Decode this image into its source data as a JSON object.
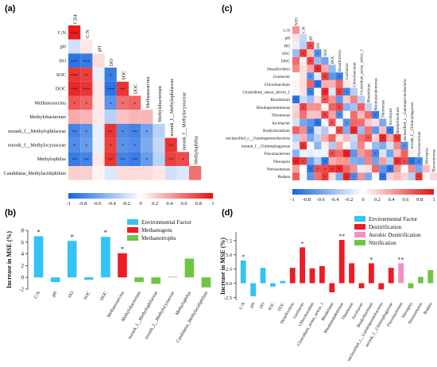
{
  "panel_labels": [
    "(a)",
    "(b)",
    "(c)",
    "(d)"
  ],
  "colorbar_ticks": [
    "-1",
    "-0.8",
    "-0.6",
    "-0.4",
    "-0.2",
    "0",
    "0.2",
    "0.4",
    "0.6",
    "0.8",
    "1"
  ],
  "colors": {
    "environmental": "#33c3f4",
    "methanogens": "#ee1b24",
    "methanotrophs": "#6ec543",
    "denitrification": "#ee1b24",
    "aerobic_denitrification": "#f48fc4",
    "nitrification": "#6ec543",
    "neg": "#1565e0",
    "pos": "#e81010"
  },
  "chart_data": [
    {
      "id": "a",
      "type": "heatmap",
      "title": "",
      "variables": [
        "CH4",
        "C:N",
        "pH",
        "DO",
        "SOC",
        "DOC",
        "Methanosarcina",
        "Methylobacterium",
        "norank_f__Methylophilaceae",
        "norank_f__Methylocystaceae",
        "Methylophilus",
        "Candidatus_Methylacidiphilum"
      ],
      "row_labels": [
        "C:N",
        "pH",
        "DO",
        "SOC",
        "DOC",
        "Methanosarcina",
        "Methylobacterium",
        "norank_f__Methylophilaceae",
        "norank_f__Methylocystaceae",
        "Methylophilus",
        "Candidatus_Methylacidiphilum"
      ],
      "column_labels": [
        "CH4",
        "C:N",
        "pH",
        "DO",
        "SOC",
        "DOC",
        "Methanosarcina",
        "Methylobacterium",
        "norank_f__Methylophilaceae",
        "norank_f__Methylocystaceae",
        "Methylophilus"
      ],
      "values": [
        [
          0.95
        ],
        [
          -0.2,
          0.1
        ],
        [
          -0.9,
          -0.85,
          0.15
        ],
        [
          0.85,
          0.8,
          -0.1,
          -0.85
        ],
        [
          0.9,
          0.85,
          0.1,
          -0.9,
          0.85
        ],
        [
          0.7,
          0.65,
          0.1,
          -0.7,
          0.6,
          0.65
        ],
        [
          0.35,
          0.3,
          0.1,
          -0.3,
          0.25,
          0.3,
          0.3
        ],
        [
          -0.8,
          -0.7,
          -0.1,
          0.85,
          -0.75,
          -0.8,
          -0.6,
          -0.3
        ],
        [
          -0.75,
          -0.65,
          -0.1,
          0.8,
          -0.7,
          -0.75,
          -0.55,
          -0.25,
          0.85
        ],
        [
          -0.85,
          -0.8,
          0.1,
          0.85,
          -0.8,
          -0.85,
          -0.65,
          -0.3,
          0.8,
          0.75
        ],
        [
          0.2,
          0.2,
          0.05,
          -0.15,
          0.15,
          0.15,
          0.15,
          0.1,
          -0.2,
          -0.15,
          0.6
        ]
      ],
      "significance": [
        [
          "***"
        ],
        [
          "",
          ""
        ],
        [
          "***",
          "***",
          ""
        ],
        [
          "***",
          "**",
          "",
          "*"
        ],
        [
          "***",
          "***",
          "",
          "***",
          "**"
        ],
        [
          "*",
          "*",
          "",
          "*",
          "*",
          "*"
        ],
        [
          "",
          "",
          "",
          "",
          "",
          "",
          ""
        ],
        [
          "**",
          "*",
          "",
          "**",
          "*",
          "**",
          "*",
          ""
        ],
        [
          "*",
          "*",
          "",
          "*",
          "*",
          "*",
          "",
          "",
          "**"
        ],
        [
          "**",
          "**",
          "",
          "**",
          "**",
          "**",
          "*",
          "",
          "**",
          "*"
        ],
        [
          "",
          "",
          "",
          "",
          "",
          "",
          "",
          "",
          "",
          "",
          ""
        ]
      ],
      "range": [
        -1,
        1
      ]
    },
    {
      "id": "b",
      "type": "bar",
      "ylabel": "Increase in MSE (%)",
      "ylim": [
        -2,
        8
      ],
      "yticks": [
        "-2",
        "0",
        "2",
        "4",
        "6",
        "8"
      ],
      "legend_position": "top-right",
      "legend": [
        "Environmental Factor",
        "Methanogens",
        "Methanotrophs"
      ],
      "categories": [
        "C:N",
        "pH",
        "DO",
        "SOC",
        "DOC",
        "Methanosarcina",
        "Methylobacterium",
        "norank_f__Methylophilaceae",
        "norank_f__Methylocystaceae",
        "Methylophilus",
        "Candidatus_Methylacidiphilum"
      ],
      "values": [
        7.0,
        -0.8,
        6.2,
        -0.4,
        6.9,
        4.1,
        -0.8,
        -1.1,
        0.1,
        3.2,
        -1.7
      ],
      "groups": [
        "environmental",
        "environmental",
        "environmental",
        "environmental",
        "environmental",
        "methanogens",
        "methanotrophs",
        "methanotrophs",
        "methanotrophs",
        "methanotrophs",
        "methanotrophs"
      ],
      "significance": [
        "*",
        "",
        "*",
        "",
        "*",
        "*",
        "",
        "",
        "",
        "",
        ""
      ]
    },
    {
      "id": "c",
      "type": "heatmap",
      "title": "",
      "variables": [
        "N2O",
        "C:N",
        "pH",
        "DO",
        "SOC",
        "DOC",
        "Desulfovibrio",
        "Geobacter",
        "Chlorobaculum",
        "Clostridium_sensu_stricto_1",
        "Rhodobium",
        "Rhodopseudomonas",
        "Thiomonas",
        "Arcobacter",
        "Bradyrhizobium",
        "unclassified_c__Gammaproteobacteria",
        "norank_f__Chitinophagaceae",
        "Flavobacterium",
        "Nitrospira",
        "Nitrosomonas",
        "Rudaea"
      ],
      "row_labels": [
        "C:N",
        "pH",
        "DO",
        "SOC",
        "DOC",
        "Desulfovibrio",
        "Geobacter",
        "Chlorobaculum",
        "Clostridium_sensu_stricto_1",
        "Rhodobium",
        "Rhodopseudomonas",
        "Thiomonas",
        "Arcobacter",
        "Bradyrhizobium",
        "unclassified_c__Gammaproteobacteria",
        "norank_f__Chitinophagaceae",
        "Flavobacterium",
        "Nitrospira",
        "Nitrosomonas",
        "Rudaea"
      ],
      "column_labels": [
        "N2O",
        "C:N",
        "pH",
        "DO",
        "SOC",
        "DOC",
        "Desulfovibrio",
        "Geobacter",
        "Chlorobaculum",
        "Clostridium_sensu_stricto_1",
        "Rhodobium",
        "Rhodopseudomonas",
        "Thiomonas",
        "Arcobacter",
        "Bradyrhizobium",
        "unclassified_c__Gammaproteobacteria",
        "norank_f__Chitinophagaceae",
        "Flavobacterium",
        "Nitrospira",
        "Nitrosomonas"
      ],
      "range": [
        -1,
        1
      ]
    },
    {
      "id": "d",
      "type": "bar",
      "ylabel": "Increase in MSE (%)",
      "ylim": [
        -3,
        9
      ],
      "yticks": [
        "-2.5",
        "0.0",
        "2.5",
        "5.0",
        "7.5"
      ],
      "legend_position": "top-right",
      "legend": [
        "Environmental Factor",
        "Denitrification",
        "Aerobic Denitrification",
        "Nitrification"
      ],
      "categories": [
        "C:N",
        "pH",
        "DO",
        "SOC",
        "DOC",
        "Desulfovibrio",
        "Geobacter",
        "Chlorobaculum",
        "Clostridium_sensu_stricto_1",
        "Rhodobium",
        "Rhodopseudomonas",
        "Thiomonas",
        "Arcobacter",
        "Bradyrhizobium",
        "unclassified_c__Gammaproteobacteria",
        "norank_f__Chitinophagaceae",
        "Flavobacterium",
        "Nitrospira",
        "Nitrosomonas",
        "Rudaea"
      ],
      "values": [
        4.0,
        -2.3,
        2.7,
        -0.6,
        0.4,
        2.7,
        6.3,
        2.6,
        3.0,
        -1.6,
        7.6,
        3.5,
        -0.9,
        3.5,
        -1.1,
        2.7,
        3.5,
        -0.9,
        1.1,
        2.3
      ],
      "groups": [
        "environmental",
        "environmental",
        "environmental",
        "environmental",
        "environmental",
        "denitrification",
        "denitrification",
        "denitrification",
        "denitrification",
        "denitrification",
        "denitrification",
        "denitrification",
        "denitrification",
        "denitrification",
        "denitrification",
        "denitrification",
        "aerobic_denitrification",
        "nitrification",
        "nitrification",
        "nitrification"
      ],
      "significance": [
        "*",
        "",
        "",
        "",
        "",
        "",
        "*",
        "",
        "",
        "",
        "**",
        "",
        "",
        "*",
        "",
        "",
        "**",
        "",
        "",
        ""
      ]
    }
  ]
}
